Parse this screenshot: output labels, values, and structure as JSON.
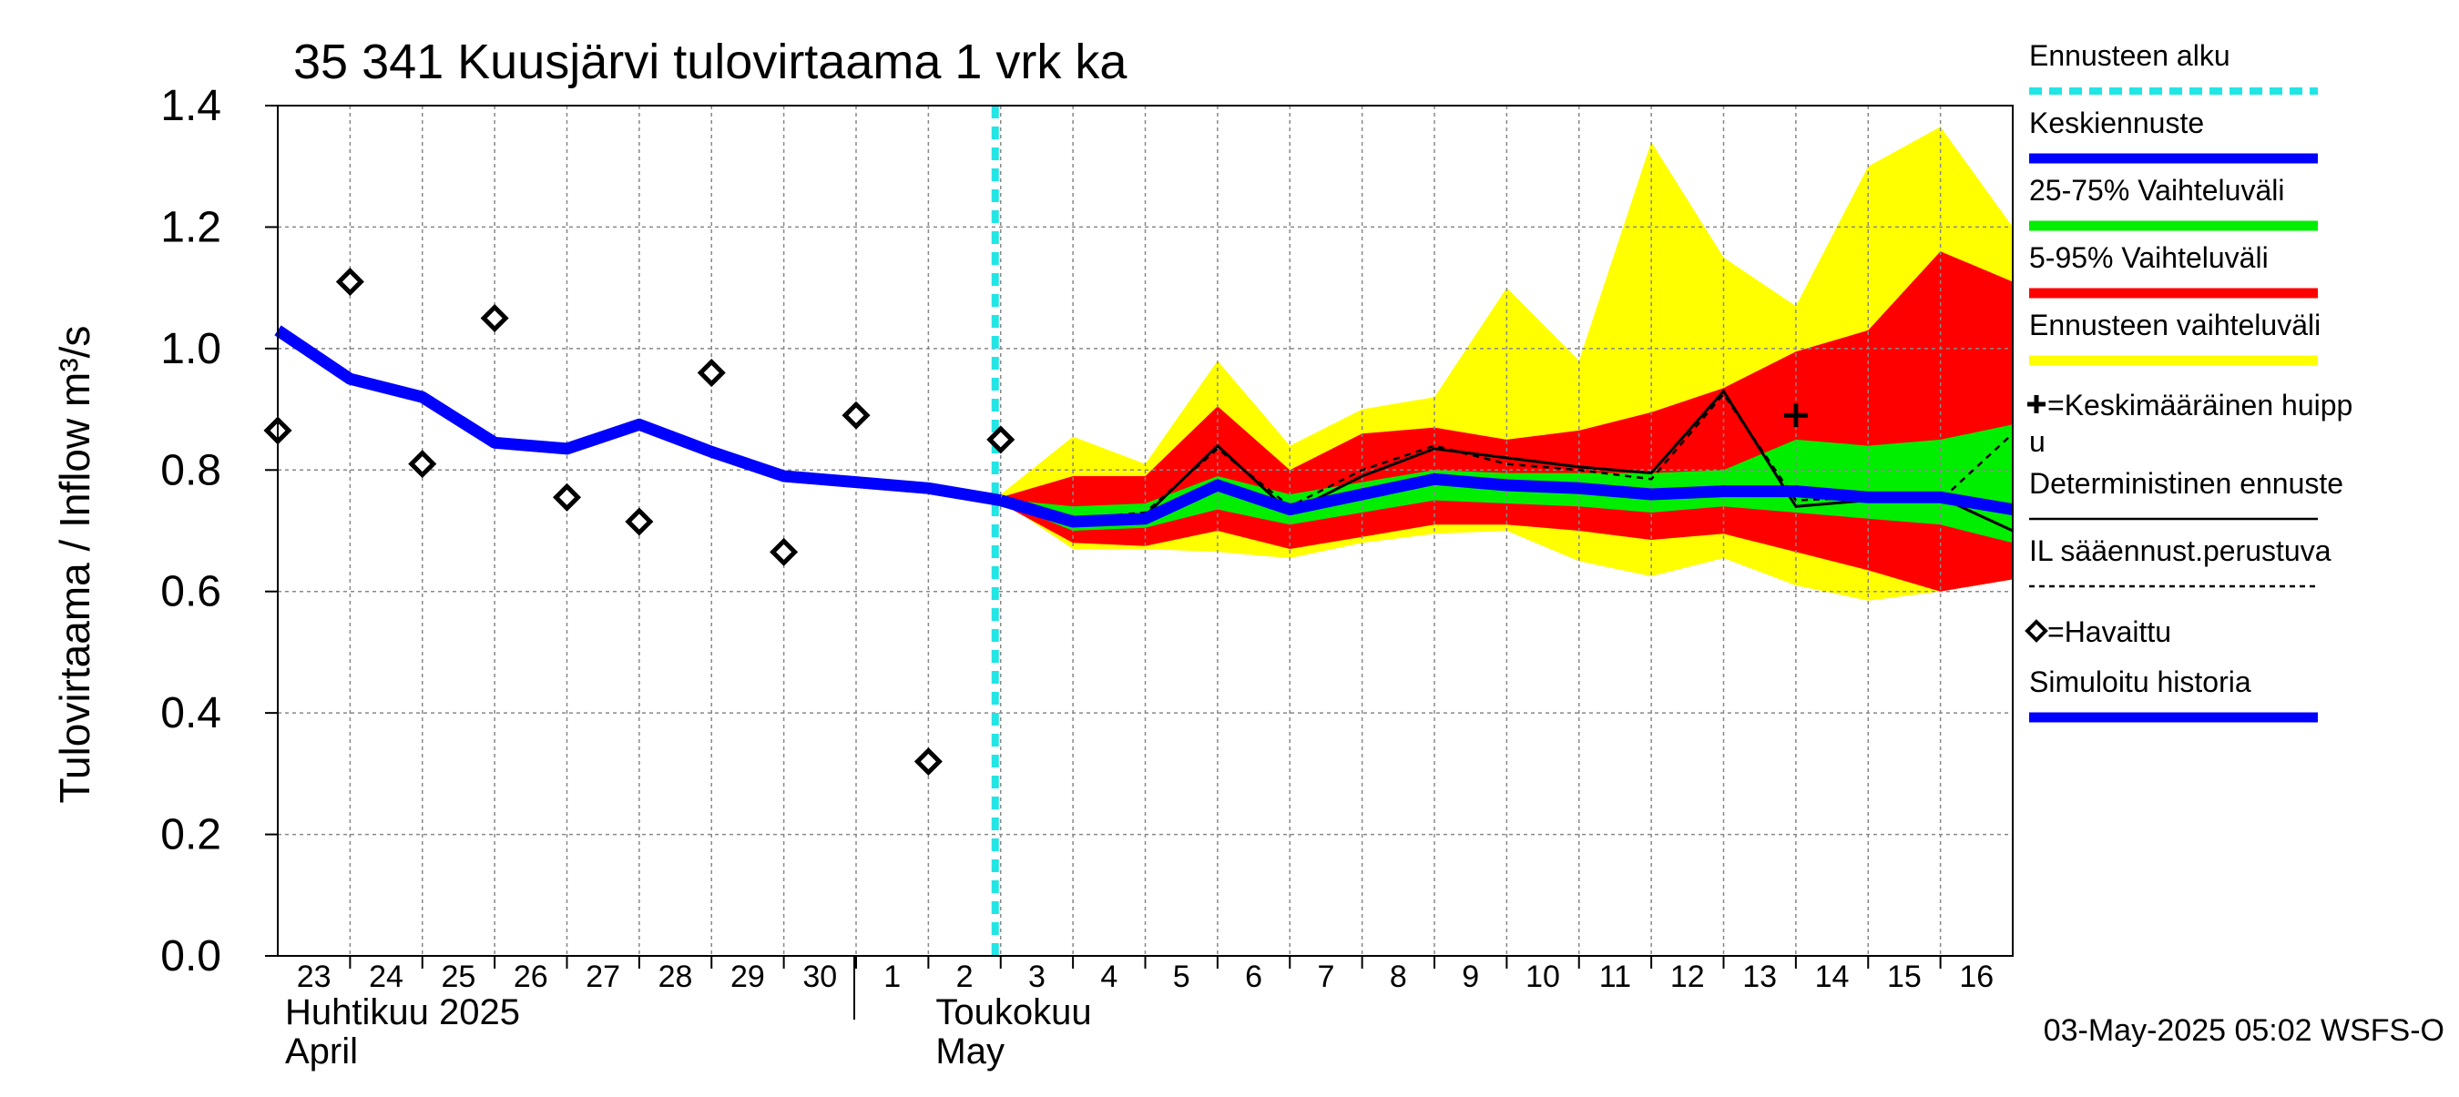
{
  "chart_data": {
    "type": "line",
    "title": "35 341 Kuusjärvi tulovirtaama 1 vrk ka",
    "ylabel": "Tulovirtaama / Inflow   m³/s",
    "ylim": [
      0,
      1.4
    ],
    "yticks": [
      "0.0",
      "0.2",
      "0.4",
      "0.6",
      "0.8",
      "1.0",
      "1.2",
      "1.4"
    ],
    "ytick_values": [
      0,
      0.2,
      0.4,
      0.6,
      0.8,
      1.0,
      1.2,
      1.4
    ],
    "xlim": [
      0,
      24
    ],
    "day_labels": [
      "23",
      "24",
      "25",
      "26",
      "27",
      "28",
      "29",
      "30",
      "1",
      "2",
      "3",
      "4",
      "5",
      "6",
      "7",
      "8",
      "9",
      "10",
      "11",
      "12",
      "13",
      "14",
      "15",
      "16"
    ],
    "month_labels": [
      {
        "fi": "Huhtikuu  2025",
        "en": "April",
        "day_index": 0
      },
      {
        "fi": "Toukokuu",
        "en": "May",
        "day_index": 9
      }
    ],
    "month_divider_index": 8,
    "forecast_start_index": 10,
    "grid": true,
    "timestamp": "03-May-2025 05:02 WSFS-O",
    "colors": {
      "forecast_start": "#22e5e5",
      "mean_forecast": "#0000ff",
      "band_25_75": "#00ee00",
      "band_5_95": "#ff0000",
      "band_full": "#ffff00",
      "simulated_history": "#0000ff",
      "deterministic": "#000000",
      "grid": "#888888"
    },
    "legend": {
      "position": "right",
      "items": [
        {
          "label": "Ennusteen alku",
          "kind": "dashed-cyan"
        },
        {
          "label": "Keskiennuste",
          "kind": "blue-line"
        },
        {
          "label": "25-75% Vaihteluväli",
          "kind": "green-line"
        },
        {
          "label": "5-95% Vaihteluväli",
          "kind": "red-line"
        },
        {
          "label": "Ennusteen vaihteluväli",
          "kind": "yellow-line"
        },
        {
          "label": "=Keskimääräinen huipp",
          "label2": "u",
          "kind": "cross"
        },
        {
          "label": "Deterministinen ennuste",
          "kind": "thin-black"
        },
        {
          "label": "IL sääennust.perustuva",
          "kind": "dashed-black"
        },
        {
          "label": "=Havaittu",
          "kind": "diamond"
        },
        {
          "label": "Simuloitu historia",
          "kind": "blue-line"
        }
      ]
    },
    "series": [
      {
        "name": "Simuloitu historia",
        "x": [
          0,
          1,
          2,
          3,
          4,
          5,
          6,
          7,
          8,
          9,
          10
        ],
        "y": [
          1.03,
          0.95,
          0.92,
          0.845,
          0.835,
          0.875,
          0.83,
          0.79,
          0.78,
          0.77,
          0.75
        ]
      },
      {
        "name": "Keskiennuste",
        "x": [
          10,
          11,
          12,
          13,
          14,
          15,
          16,
          17,
          18,
          19,
          20,
          21,
          22,
          23,
          24
        ],
        "y": [
          0.75,
          0.715,
          0.72,
          0.775,
          0.735,
          0.76,
          0.785,
          0.775,
          0.77,
          0.76,
          0.765,
          0.765,
          0.755,
          0.755,
          0.735
        ]
      },
      {
        "name": "Deterministinen ennuste",
        "x": [
          10,
          11,
          12,
          13,
          14,
          15,
          16,
          17,
          18,
          19,
          20,
          21,
          22,
          23,
          24
        ],
        "y": [
          0.75,
          0.72,
          0.725,
          0.84,
          0.73,
          0.79,
          0.835,
          0.82,
          0.805,
          0.795,
          0.93,
          0.74,
          0.75,
          0.755,
          0.7
        ]
      },
      {
        "name": "IL sääennust.perustuva",
        "x": [
          10,
          11,
          12,
          13,
          14,
          15,
          16,
          17,
          18,
          19,
          20,
          21,
          22,
          23,
          24
        ],
        "y": [
          0.75,
          0.72,
          0.73,
          0.835,
          0.74,
          0.8,
          0.84,
          0.81,
          0.8,
          0.785,
          0.925,
          0.75,
          0.755,
          0.75,
          0.86
        ]
      }
    ],
    "bands": {
      "x": [
        10,
        11,
        12,
        13,
        14,
        15,
        16,
        17,
        18,
        19,
        20,
        21,
        22,
        23,
        24
      ],
      "full_low": [
        0.75,
        0.67,
        0.67,
        0.665,
        0.655,
        0.68,
        0.695,
        0.7,
        0.65,
        0.625,
        0.655,
        0.61,
        0.585,
        0.6,
        0.62
      ],
      "full_high": [
        0.76,
        0.855,
        0.81,
        0.98,
        0.84,
        0.9,
        0.92,
        1.1,
        0.98,
        1.34,
        1.15,
        1.07,
        1.3,
        1.365,
        1.2
      ],
      "p5": [
        0.745,
        0.68,
        0.675,
        0.7,
        0.67,
        0.69,
        0.71,
        0.71,
        0.7,
        0.685,
        0.695,
        0.665,
        0.635,
        0.6,
        0.62
      ],
      "p95": [
        0.755,
        0.79,
        0.79,
        0.905,
        0.8,
        0.86,
        0.87,
        0.85,
        0.865,
        0.895,
        0.935,
        0.995,
        1.03,
        1.16,
        1.11
      ],
      "p25": [
        0.748,
        0.7,
        0.705,
        0.735,
        0.71,
        0.73,
        0.75,
        0.745,
        0.74,
        0.73,
        0.74,
        0.73,
        0.72,
        0.71,
        0.68
      ],
      "p75": [
        0.752,
        0.74,
        0.745,
        0.79,
        0.76,
        0.78,
        0.8,
        0.795,
        0.795,
        0.795,
        0.8,
        0.85,
        0.84,
        0.85,
        0.875
      ]
    },
    "observed": {
      "name": "Havaittu",
      "x": [
        0,
        1,
        2,
        3,
        4,
        5,
        6,
        7,
        8,
        9,
        10
      ],
      "y": [
        0.865,
        1.11,
        0.81,
        1.05,
        0.755,
        0.715,
        0.96,
        0.665,
        0.89,
        0.32,
        0.85
      ]
    },
    "mean_peak": {
      "x": 21,
      "y": 0.89
    }
  }
}
